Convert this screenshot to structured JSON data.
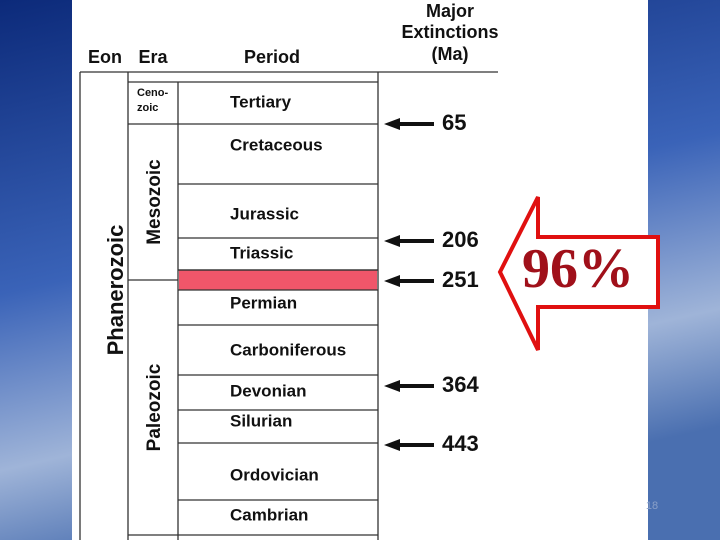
{
  "header": {
    "eon": "Eon",
    "era": "Era",
    "period": "Period",
    "extinctions": [
      "Major",
      "Extinctions",
      "(Ma)"
    ]
  },
  "eons": [
    {
      "label": "Phanerozoic"
    }
  ],
  "eras": [
    {
      "lines": [
        "Ceno-",
        "zoic"
      ]
    },
    {
      "lines": [
        "Mesozoic"
      ]
    },
    {
      "lines": [
        "Paleozoic"
      ]
    }
  ],
  "periods": [
    "Tertiary",
    "Cretaceous",
    "Jurassic",
    "Triassic",
    "Permian",
    "Carboniferous",
    "Devonian",
    "Silurian",
    "Ordovician",
    "Cambrian"
  ],
  "extinctions": [
    65,
    206,
    251,
    364,
    443
  ],
  "callout": "96%",
  "page_number": "18"
}
